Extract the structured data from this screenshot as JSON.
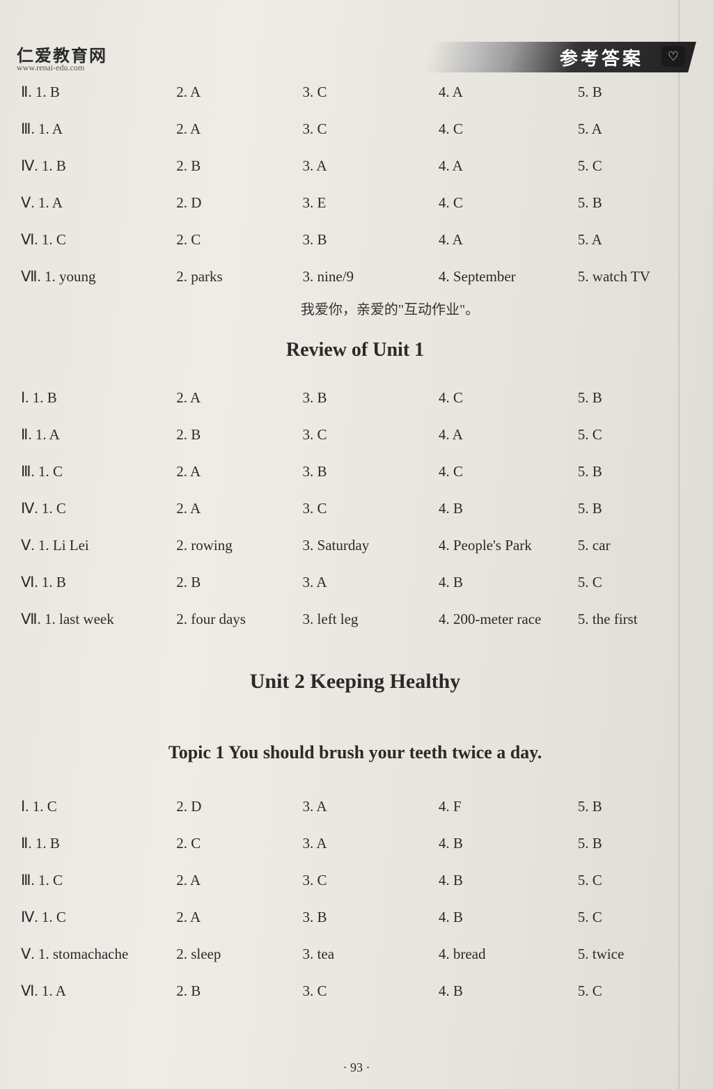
{
  "header": {
    "site_title": "仁爱教育网",
    "site_url": "www.renai-edu.com",
    "banner": "参考答案"
  },
  "blocks": [
    {
      "rows": [
        [
          "Ⅱ. 1. B",
          "2. A",
          "3. C",
          "4. A",
          "5. B"
        ],
        [
          "Ⅲ. 1. A",
          "2. A",
          "3. C",
          "4. C",
          "5. A"
        ],
        [
          "Ⅳ. 1. B",
          "2. B",
          "3. A",
          "4. A",
          "5. C"
        ],
        [
          "Ⅴ. 1. A",
          "2. D",
          "3. E",
          "4. C",
          "5. B"
        ],
        [
          "Ⅵ. 1. C",
          "2. C",
          "3. B",
          "4. A",
          "5. A"
        ],
        [
          "Ⅶ. 1. young",
          "2. parks",
          "3. nine/9",
          "4. September",
          "5. watch TV"
        ]
      ]
    }
  ],
  "handwriting": "我爱你，亲爱的\"互动作业\"。",
  "section_review": "Review of Unit 1",
  "blocks2": [
    {
      "rows": [
        [
          "Ⅰ. 1. B",
          "2. A",
          "3. B",
          "4. C",
          "5. B"
        ],
        [
          "Ⅱ. 1. A",
          "2. B",
          "3. C",
          "4. A",
          "5. C"
        ],
        [
          "Ⅲ. 1. C",
          "2. A",
          "3. B",
          "4. C",
          "5. B"
        ],
        [
          "Ⅳ. 1. C",
          "2. A",
          "3. C",
          "4. B",
          "5. B"
        ],
        [
          "Ⅴ. 1. Li Lei",
          "2. rowing",
          "3. Saturday",
          "4. People's Park",
          "5. car"
        ],
        [
          "Ⅵ. 1. B",
          "2. B",
          "3. A",
          "4. B",
          "5. C"
        ],
        [
          "Ⅶ. 1. last week",
          "2. four days",
          "3. left leg",
          "4. 200-meter race",
          "5. the first"
        ]
      ]
    }
  ],
  "unit_title": "Unit 2    Keeping Healthy",
  "topic_title": "Topic 1    You should brush your teeth twice a day.",
  "blocks3": [
    {
      "rows": [
        [
          "Ⅰ. 1. C",
          "2. D",
          "3. A",
          "4. F",
          "5. B"
        ],
        [
          "Ⅱ. 1. B",
          "2. C",
          "3. A",
          "4. B",
          "5. B"
        ],
        [
          "Ⅲ. 1. C",
          "2. A",
          "3. C",
          "4. B",
          "5. C"
        ],
        [
          "Ⅳ. 1. C",
          "2. A",
          "3. B",
          "4. B",
          "5. C"
        ],
        [
          "Ⅴ. 1. stomachache",
          "2. sleep",
          "3. tea",
          "4. bread",
          "5. twice"
        ],
        [
          "Ⅵ. 1. A",
          "2. B",
          "3. C",
          "4. B",
          "5. C"
        ]
      ]
    }
  ],
  "page_number": "· 93 ·"
}
